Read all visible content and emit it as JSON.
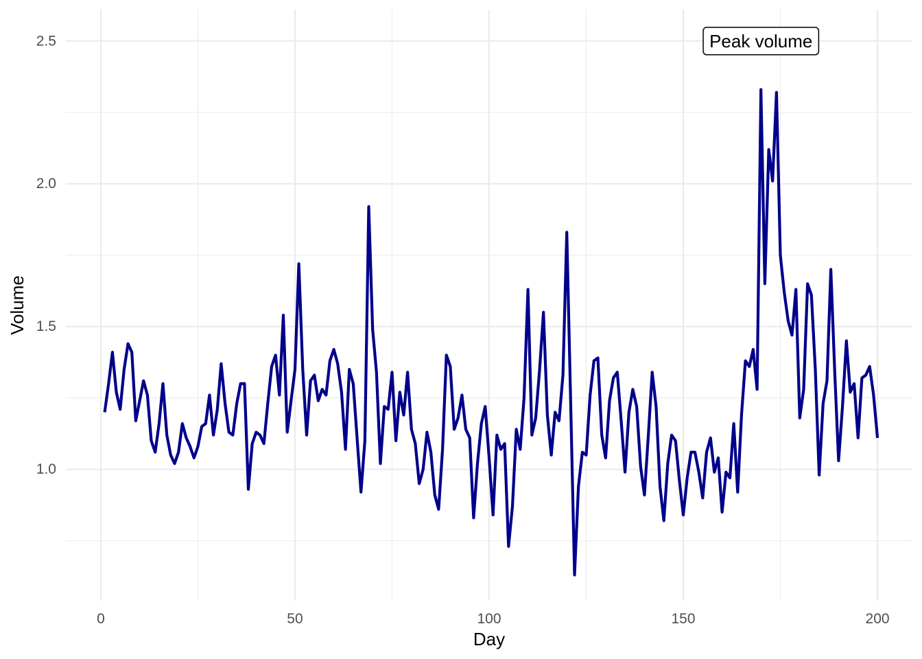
{
  "chart_data": {
    "type": "line",
    "title": "",
    "xlabel": "Day",
    "ylabel": "Volume",
    "xlim": [
      -9,
      209
    ],
    "ylim": [
      0.54,
      2.61
    ],
    "xticks": [
      0,
      50,
      100,
      150,
      200
    ],
    "xtick_labels": [
      "0",
      "50",
      "100",
      "150",
      "200"
    ],
    "yticks": [
      1.0,
      1.5,
      2.0,
      2.5
    ],
    "ytick_labels": [
      "1.0",
      "1.5",
      "2.0",
      "2.5"
    ],
    "grid": true,
    "legend": "none",
    "line_color": "#00008b",
    "annotation": {
      "text": "Peak volume",
      "x": 170,
      "y": 2.5
    },
    "x": [
      1,
      2,
      3,
      4,
      5,
      6,
      7,
      8,
      9,
      10,
      11,
      12,
      13,
      14,
      15,
      16,
      17,
      18,
      19,
      20,
      21,
      22,
      23,
      24,
      25,
      26,
      27,
      28,
      29,
      30,
      31,
      32,
      33,
      34,
      35,
      36,
      37,
      38,
      39,
      40,
      41,
      42,
      43,
      44,
      45,
      46,
      47,
      48,
      49,
      50,
      51,
      52,
      53,
      54,
      55,
      56,
      57,
      58,
      59,
      60,
      61,
      62,
      63,
      64,
      65,
      66,
      67,
      68,
      69,
      70,
      71,
      72,
      73,
      74,
      75,
      76,
      77,
      78,
      79,
      80,
      81,
      82,
      83,
      84,
      85,
      86,
      87,
      88,
      89,
      90,
      91,
      92,
      93,
      94,
      95,
      96,
      97,
      98,
      99,
      100,
      101,
      102,
      103,
      104,
      105,
      106,
      107,
      108,
      109,
      110,
      111,
      112,
      113,
      114,
      115,
      116,
      117,
      118,
      119,
      120,
      121,
      122,
      123,
      124,
      125,
      126,
      127,
      128,
      129,
      130,
      131,
      132,
      133,
      134,
      135,
      136,
      137,
      138,
      139,
      140,
      141,
      142,
      143,
      144,
      145,
      146,
      147,
      148,
      149,
      150,
      151,
      152,
      153,
      154,
      155,
      156,
      157,
      158,
      159,
      160,
      161,
      162,
      163,
      164,
      165,
      166,
      167,
      168,
      169,
      170,
      171,
      172,
      173,
      174,
      175,
      176,
      177,
      178,
      179,
      180,
      181,
      182,
      183,
      184,
      185,
      186,
      187,
      188,
      189,
      190,
      191,
      192,
      193,
      194,
      195,
      196,
      197,
      198,
      199,
      200
    ],
    "series": [
      {
        "values": [
          1.2,
          1.3,
          1.41,
          1.27,
          1.21,
          1.35,
          1.44,
          1.41,
          1.17,
          1.24,
          1.31,
          1.26,
          1.1,
          1.06,
          1.16,
          1.3,
          1.12,
          1.05,
          1.02,
          1.06,
          1.16,
          1.11,
          1.08,
          1.04,
          1.08,
          1.15,
          1.16,
          1.26,
          1.12,
          1.21,
          1.37,
          1.23,
          1.13,
          1.12,
          1.23,
          1.3,
          1.3,
          0.93,
          1.09,
          1.13,
          1.12,
          1.09,
          1.23,
          1.36,
          1.4,
          1.26,
          1.54,
          1.13,
          1.24,
          1.35,
          1.72,
          1.35,
          1.12,
          1.31,
          1.33,
          1.24,
          1.28,
          1.26,
          1.38,
          1.42,
          1.37,
          1.27,
          1.07,
          1.35,
          1.3,
          1.11,
          0.92,
          1.1,
          1.92,
          1.49,
          1.34,
          1.02,
          1.22,
          1.21,
          1.34,
          1.1,
          1.27,
          1.19,
          1.34,
          1.14,
          1.09,
          0.95,
          1.0,
          1.13,
          1.06,
          0.91,
          0.86,
          1.07,
          1.4,
          1.36,
          1.14,
          1.18,
          1.26,
          1.14,
          1.11,
          0.83,
          1.02,
          1.16,
          1.22,
          1.04,
          0.84,
          1.12,
          1.07,
          1.09,
          0.73,
          0.87,
          1.14,
          1.07,
          1.25,
          1.63,
          1.12,
          1.18,
          1.35,
          1.55,
          1.19,
          1.05,
          1.2,
          1.17,
          1.33,
          1.83,
          1.23,
          0.63,
          0.94,
          1.06,
          1.05,
          1.26,
          1.38,
          1.39,
          1.12,
          1.04,
          1.24,
          1.32,
          1.34,
          1.17,
          0.99,
          1.2,
          1.28,
          1.22,
          1.01,
          0.91,
          1.12,
          1.34,
          1.22,
          0.94,
          0.82,
          1.02,
          1.12,
          1.1,
          0.96,
          0.84,
          0.97,
          1.06,
          1.06,
          0.99,
          0.9,
          1.06,
          1.11,
          0.99,
          1.04,
          0.85,
          0.99,
          0.97,
          1.16,
          0.92,
          1.19,
          1.38,
          1.36,
          1.42,
          1.28,
          2.33,
          1.65,
          2.12,
          2.01,
          2.32,
          1.75,
          1.62,
          1.52,
          1.47,
          1.63,
          1.18,
          1.28,
          1.65,
          1.61,
          1.35,
          0.98,
          1.23,
          1.31,
          1.7,
          1.34,
          1.03,
          1.22,
          1.45,
          1.27,
          1.3,
          1.11,
          1.32,
          1.33,
          1.36,
          1.26,
          1.11
        ]
      }
    ]
  }
}
